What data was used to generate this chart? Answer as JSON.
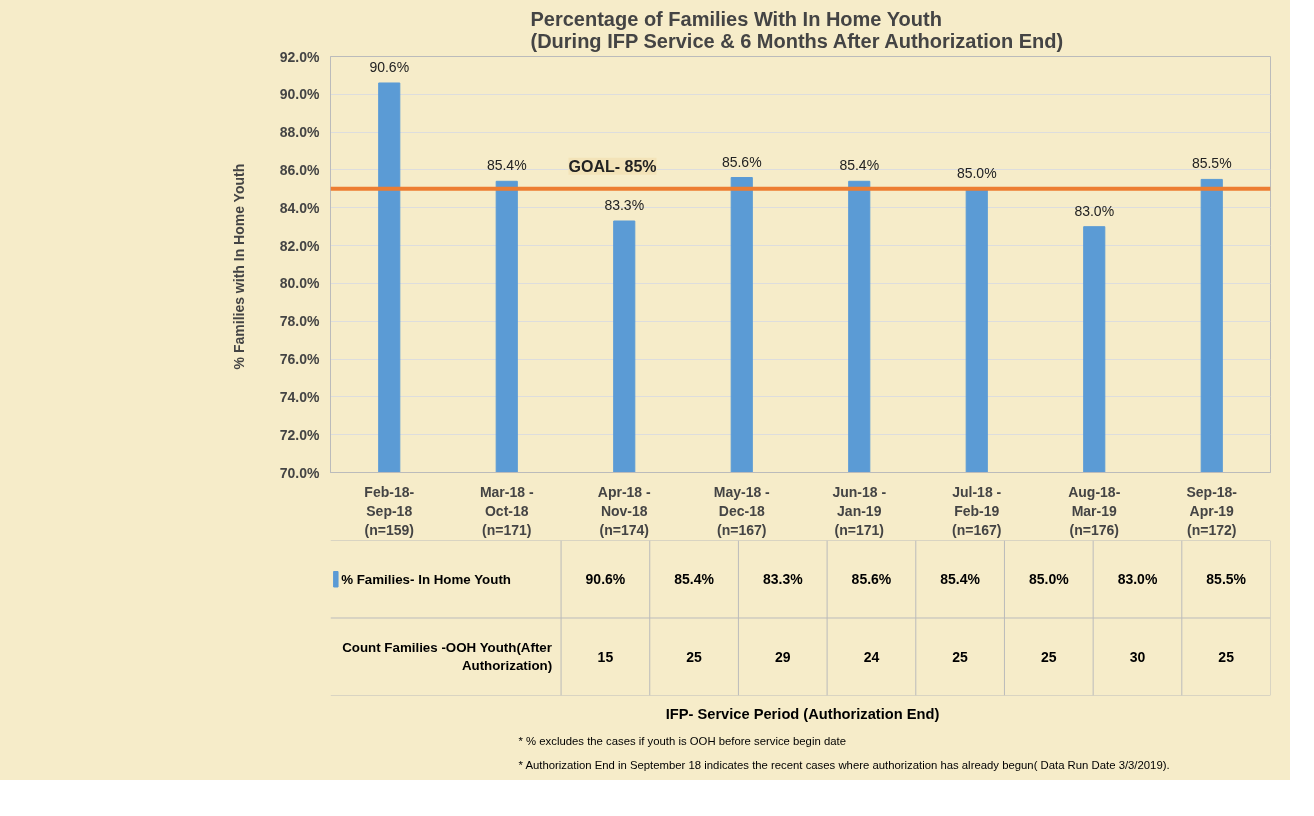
{
  "chart_data": {
    "type": "bar",
    "title": "Percentage of Families With In Home Youth\n(During  IFP Service & 6 Months After Authorization End)",
    "ylabel": "% Families with  In Home Youth",
    "categories": [
      "Feb-18-\nSep-18\n(n=159)",
      "Mar-18 -\nOct-18\n(n=171)",
      "Apr-18 -\nNov-18\n(n=174)",
      "May-18 -\nDec-18\n(n=167)",
      "Jun-18 -\nJan-19\n(n=171)",
      "Jul-18 -\nFeb-19\n(n=167)",
      "Aug-18-\nMar-19\n(n=176)",
      "Sep-18-\nApr-19\n(n=172)"
    ],
    "series": [
      {
        "name": "% Families- In Home Youth",
        "color": "#5b9bd5",
        "values": [
          90.6,
          85.4,
          83.3,
          85.6,
          85.4,
          85.0,
          83.0,
          85.5
        ],
        "value_labels": [
          "90.6%",
          "85.4%",
          "83.3%",
          "85.6%",
          "85.4%",
          "85.0%",
          "83.0%",
          "85.5%"
        ]
      }
    ],
    "ylim": [
      70,
      92
    ],
    "yticks": [
      {
        "value": 70,
        "label": "70.0%"
      },
      {
        "value": 72,
        "label": "72.0%"
      },
      {
        "value": 74,
        "label": "74.0%"
      },
      {
        "value": 76,
        "label": "76.0%"
      },
      {
        "value": 78,
        "label": "78.0%"
      },
      {
        "value": 80,
        "label": "80.0%"
      },
      {
        "value": 82,
        "label": "82.0%"
      },
      {
        "value": 84,
        "label": "84.0%"
      },
      {
        "value": 86,
        "label": "86.0%"
      },
      {
        "value": 88,
        "label": "88.0%"
      },
      {
        "value": 90,
        "label": "90.0%"
      },
      {
        "value": 92,
        "label": "92.0%"
      }
    ],
    "grid": "y",
    "legend": "bottom",
    "ref_lines": [
      {
        "axis": "y",
        "value": 85,
        "label": "GOAL- 85%",
        "color": "#ed7d31"
      }
    ],
    "annotations": [
      "Count Families -OOH Youth(After\nAuthorization)",
      "15",
      "25",
      "29",
      "24",
      "25",
      "25",
      "30",
      "25",
      "IFP- Service Period (Authorization End)",
      "* % excludes the cases if youth is OOH before service begin date",
      "* Authorization End in September 18 indicates the  recent cases where  authorization has already begun( Data Run Date 3/3/2019)."
    ]
  }
}
